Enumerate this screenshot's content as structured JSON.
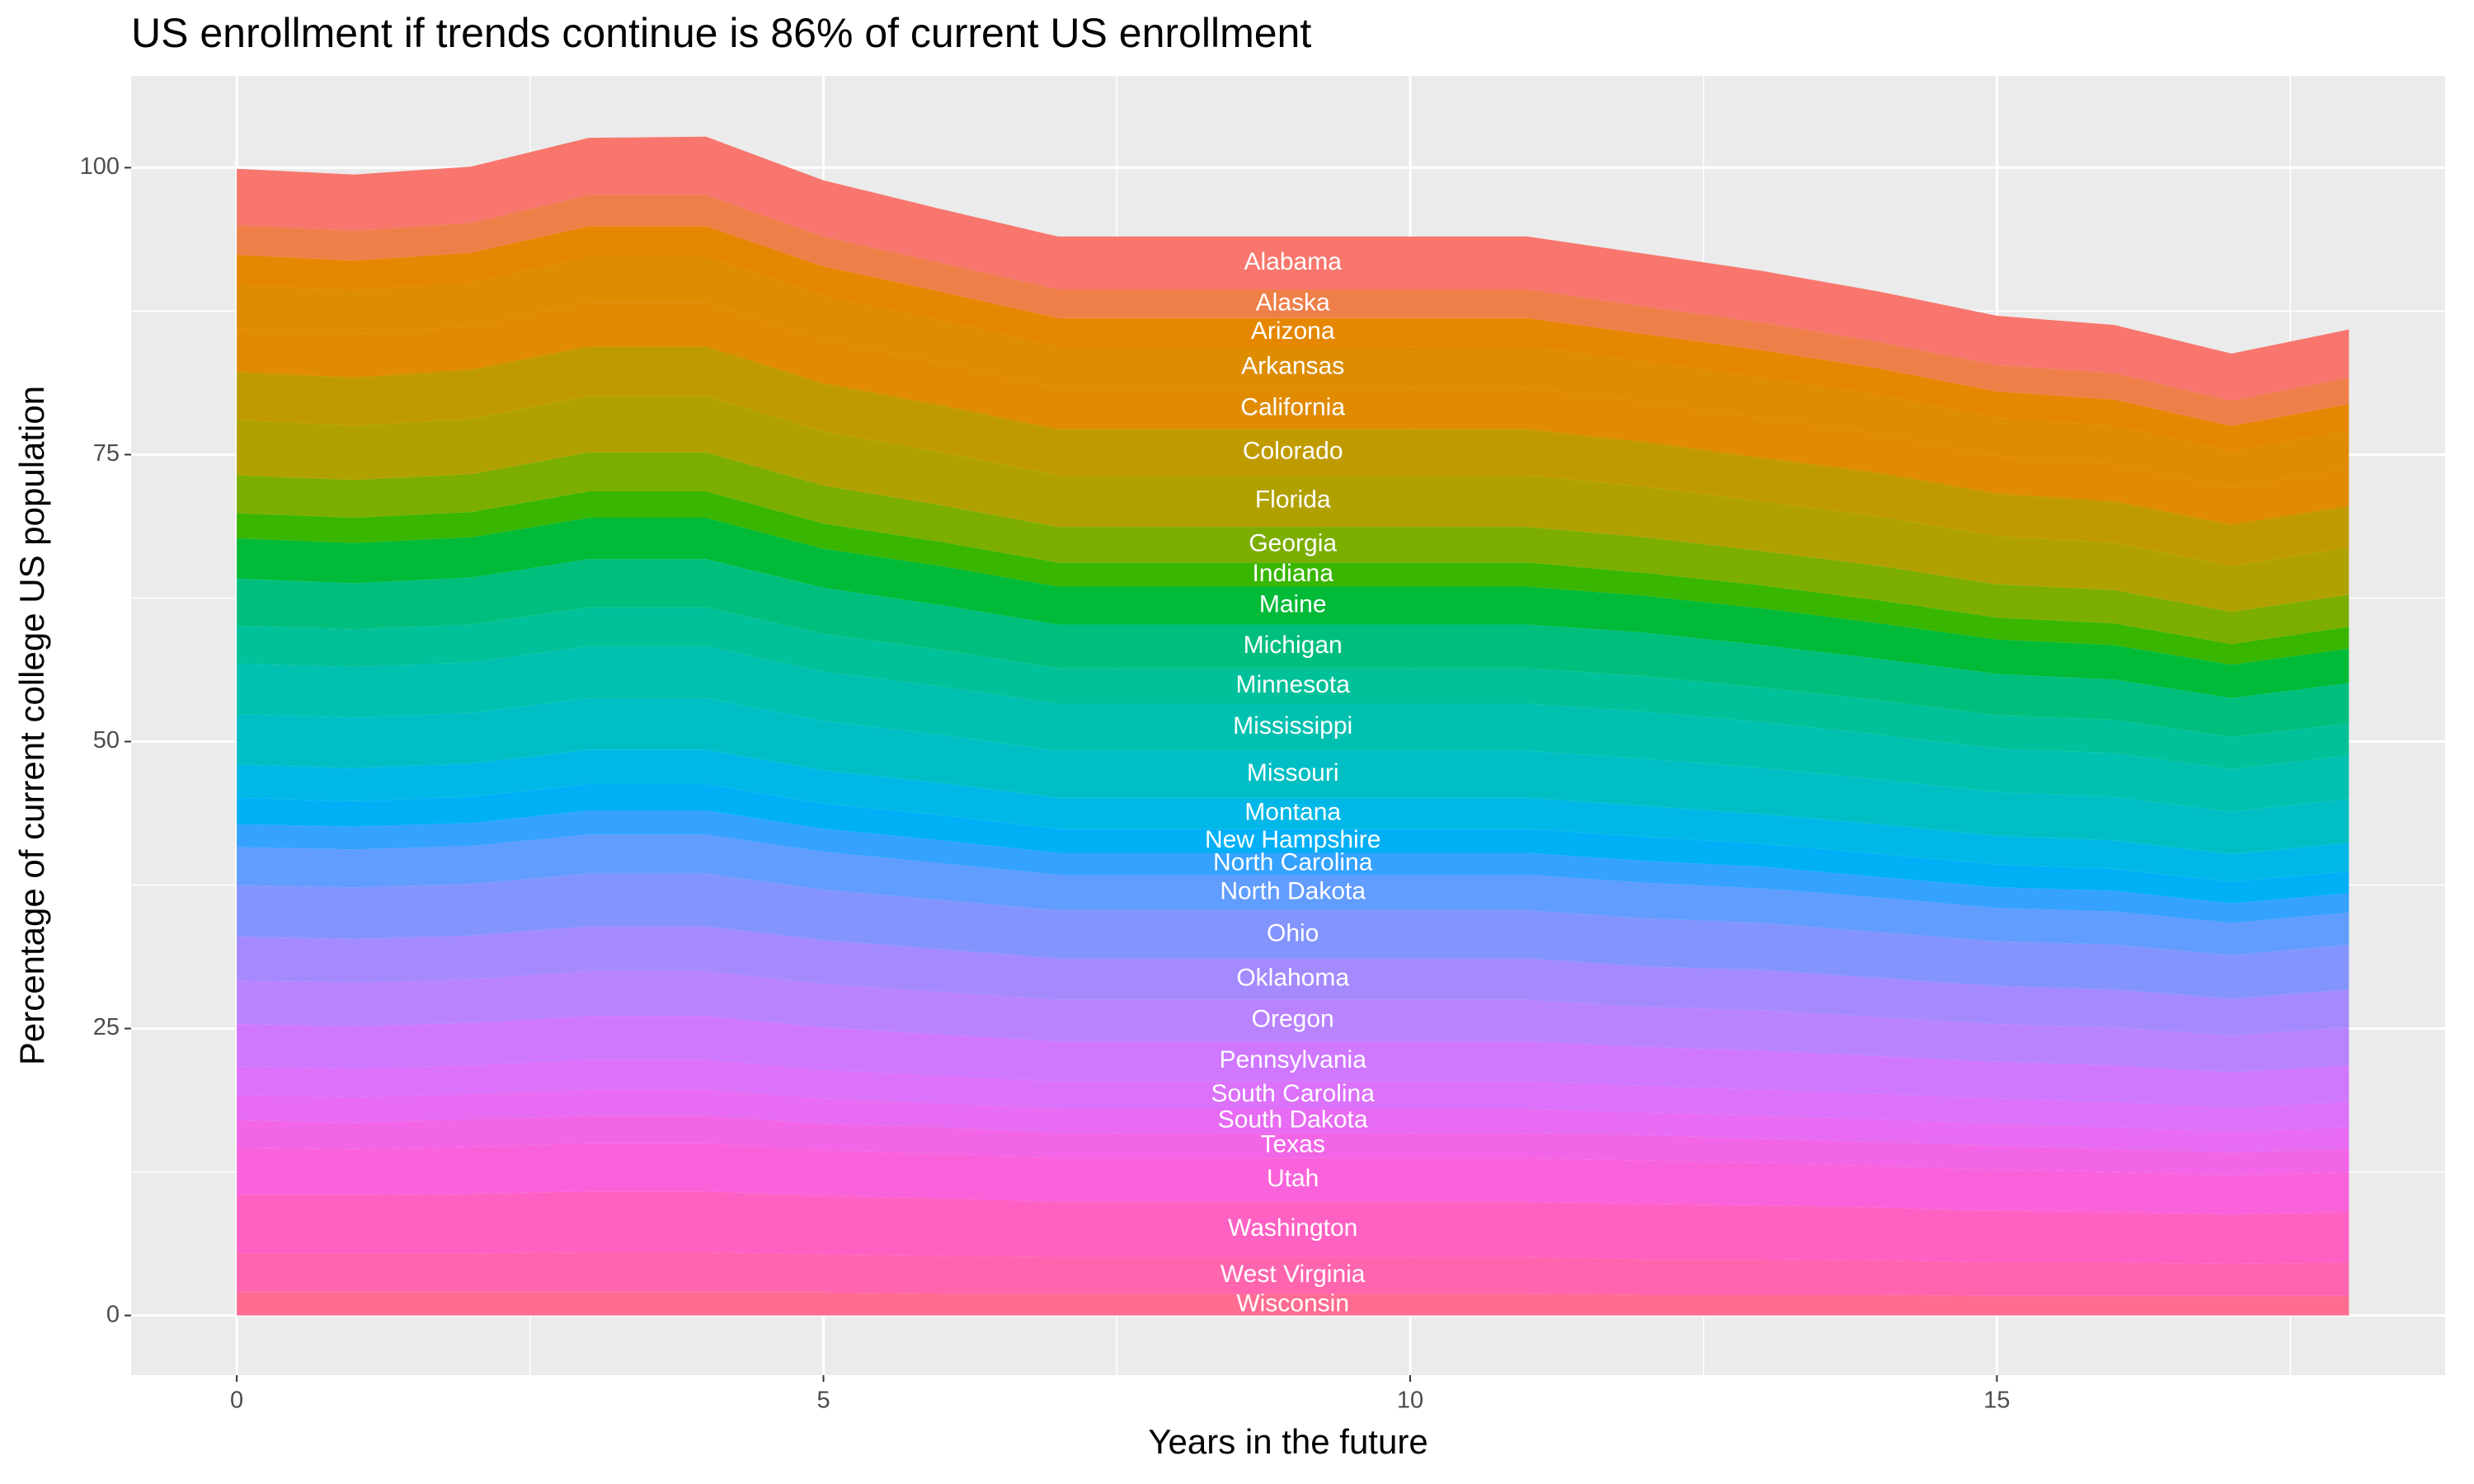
{
  "chart_data": {
    "type": "area",
    "title": "US enrollment if trends continue is 86% of current US enrollment",
    "x_label": "Years in the future",
    "y_label": "Percentage of current college US population",
    "x": [
      0,
      1,
      2,
      3,
      4,
      5,
      6,
      7,
      8,
      9,
      10,
      11,
      12,
      13,
      14,
      15,
      16,
      17,
      18
    ],
    "xlim": [
      -0.9,
      18.82
    ],
    "xticks": [
      0,
      5,
      10,
      15
    ],
    "ylim": [
      -5.2,
      108
    ],
    "yticks": [
      0,
      25,
      50,
      75,
      100
    ],
    "grid": true,
    "panel_color": "#ebebeb",
    "label_color": "#ffffff",
    "series": [
      {
        "name": "Alabama",
        "color": "#F8766D",
        "values": [
          4.9,
          4.9,
          4.9,
          5.0,
          5.1,
          4.9,
          4.7,
          4.6,
          4.6,
          4.6,
          4.6,
          4.6,
          4.6,
          4.5,
          4.4,
          4.3,
          4.2,
          4.1,
          4.2
        ]
      },
      {
        "name": "Alaska",
        "color": "#EF7F49",
        "values": [
          2.6,
          2.6,
          2.6,
          2.7,
          2.7,
          2.6,
          2.5,
          2.5,
          2.5,
          2.5,
          2.5,
          2.5,
          2.4,
          2.4,
          2.3,
          2.3,
          2.3,
          2.2,
          2.3
        ]
      },
      {
        "name": "Arizona",
        "color": "#E58700",
        "values": [
          2.6,
          2.6,
          2.6,
          2.7,
          2.7,
          2.6,
          2.5,
          2.5,
          2.5,
          2.5,
          2.5,
          2.5,
          2.4,
          2.4,
          2.3,
          2.3,
          2.3,
          2.2,
          2.3
        ]
      },
      {
        "name": "Arkansas",
        "color": "#DE8C00",
        "values": [
          3.8,
          3.8,
          3.8,
          3.9,
          3.9,
          3.8,
          3.7,
          3.6,
          3.6,
          3.6,
          3.6,
          3.6,
          3.5,
          3.5,
          3.4,
          3.3,
          3.3,
          3.2,
          3.3
        ]
      },
      {
        "name": "California",
        "color": "#E08B00",
        "values": [
          3.8,
          3.8,
          3.8,
          3.9,
          3.9,
          3.8,
          3.7,
          3.6,
          3.6,
          3.6,
          3.6,
          3.6,
          3.5,
          3.5,
          3.4,
          3.3,
          3.3,
          3.2,
          3.3
        ]
      },
      {
        "name": "Colorado",
        "color": "#C09B00",
        "values": [
          4.2,
          4.2,
          4.3,
          4.3,
          4.3,
          4.2,
          4.1,
          4.0,
          4.0,
          4.0,
          4.0,
          4.0,
          3.9,
          3.8,
          3.8,
          3.7,
          3.6,
          3.6,
          3.6
        ]
      },
      {
        "name": "Florida",
        "color": "#B0A100",
        "values": [
          4.8,
          4.7,
          4.8,
          4.9,
          4.9,
          4.7,
          4.6,
          4.5,
          4.5,
          4.5,
          4.5,
          4.5,
          4.4,
          4.3,
          4.3,
          4.2,
          4.1,
          4.0,
          4.1
        ]
      },
      {
        "name": "Georgia",
        "color": "#7CAE00",
        "values": [
          3.3,
          3.3,
          3.3,
          3.4,
          3.4,
          3.3,
          3.2,
          3.1,
          3.1,
          3.1,
          3.1,
          3.1,
          3.1,
          3.0,
          3.0,
          2.9,
          2.9,
          2.8,
          2.8
        ]
      },
      {
        "name": "Indiana",
        "color": "#39B600",
        "values": [
          2.2,
          2.2,
          2.2,
          2.3,
          2.3,
          2.2,
          2.1,
          2.1,
          2.1,
          2.1,
          2.1,
          2.1,
          2.0,
          2.0,
          2.0,
          1.9,
          1.9,
          1.8,
          1.9
        ]
      },
      {
        "name": "Maine",
        "color": "#00BA38",
        "values": [
          3.5,
          3.5,
          3.5,
          3.6,
          3.6,
          3.4,
          3.4,
          3.3,
          3.3,
          3.3,
          3.3,
          3.3,
          3.2,
          3.2,
          3.1,
          3.0,
          3.0,
          2.9,
          3.0
        ]
      },
      {
        "name": "Michigan",
        "color": "#00BF7D",
        "values": [
          4.1,
          4.0,
          4.1,
          4.2,
          4.2,
          4.0,
          3.9,
          3.8,
          3.8,
          3.8,
          3.8,
          3.8,
          3.8,
          3.7,
          3.6,
          3.6,
          3.5,
          3.4,
          3.5
        ]
      },
      {
        "name": "Minnesota",
        "color": "#00C19A",
        "values": [
          3.3,
          3.3,
          3.3,
          3.4,
          3.4,
          3.3,
          3.2,
          3.1,
          3.1,
          3.1,
          3.1,
          3.1,
          3.1,
          3.0,
          3.0,
          2.9,
          2.9,
          2.8,
          2.8
        ]
      },
      {
        "name": "Mississippi",
        "color": "#00C0B0",
        "values": [
          4.4,
          4.4,
          4.4,
          4.5,
          4.5,
          4.3,
          4.2,
          4.1,
          4.1,
          4.1,
          4.1,
          4.1,
          4.1,
          4.0,
          3.9,
          3.8,
          3.8,
          3.7,
          3.8
        ]
      },
      {
        "name": "Missouri",
        "color": "#00BFC4",
        "values": [
          4.4,
          4.4,
          4.4,
          4.5,
          4.5,
          4.3,
          4.2,
          4.1,
          4.1,
          4.1,
          4.1,
          4.1,
          4.1,
          4.0,
          3.9,
          3.8,
          3.8,
          3.7,
          3.8
        ]
      },
      {
        "name": "Montana",
        "color": "#00B8E7",
        "values": [
          2.9,
          2.9,
          2.9,
          3.0,
          3.0,
          2.9,
          2.8,
          2.7,
          2.7,
          2.7,
          2.7,
          2.7,
          2.7,
          2.6,
          2.6,
          2.5,
          2.5,
          2.4,
          2.5
        ]
      },
      {
        "name": "New Hampshire",
        "color": "#00B0F6",
        "values": [
          2.3,
          2.2,
          2.3,
          2.3,
          2.3,
          2.2,
          2.2,
          2.1,
          2.1,
          2.1,
          2.1,
          2.1,
          2.1,
          2.0,
          2.0,
          2.0,
          1.9,
          1.9,
          1.9
        ]
      },
      {
        "name": "North Carolina",
        "color": "#35A2FF",
        "values": [
          2.0,
          2.0,
          2.0,
          2.1,
          2.1,
          2.0,
          2.0,
          1.9,
          1.9,
          1.9,
          1.9,
          1.9,
          1.9,
          1.9,
          1.8,
          1.8,
          1.8,
          1.7,
          1.7
        ]
      },
      {
        "name": "North Dakota",
        "color": "#619CFF",
        "values": [
          3.3,
          3.3,
          3.3,
          3.4,
          3.4,
          3.3,
          3.2,
          3.1,
          3.1,
          3.1,
          3.1,
          3.1,
          3.1,
          3.0,
          3.0,
          2.9,
          2.9,
          2.8,
          2.8
        ]
      },
      {
        "name": "Ohio",
        "color": "#8494FF",
        "values": [
          4.5,
          4.5,
          4.5,
          4.6,
          4.6,
          4.4,
          4.3,
          4.2,
          4.2,
          4.2,
          4.2,
          4.2,
          4.2,
          4.1,
          4.0,
          3.9,
          3.9,
          3.8,
          3.9
        ]
      },
      {
        "name": "Oklahoma",
        "color": "#A58AFF",
        "values": [
          3.8,
          3.8,
          3.8,
          3.9,
          3.9,
          3.8,
          3.7,
          3.6,
          3.6,
          3.6,
          3.6,
          3.6,
          3.5,
          3.5,
          3.4,
          3.3,
          3.3,
          3.2,
          3.3
        ]
      },
      {
        "name": "Oregon",
        "color": "#B983FF",
        "values": [
          3.8,
          3.8,
          3.8,
          3.9,
          3.9,
          3.8,
          3.7,
          3.6,
          3.6,
          3.6,
          3.6,
          3.6,
          3.5,
          3.5,
          3.4,
          3.3,
          3.3,
          3.2,
          3.3
        ]
      },
      {
        "name": "Pennsylvania",
        "color": "#CF78FF",
        "values": [
          3.7,
          3.7,
          3.7,
          3.8,
          3.8,
          3.7,
          3.6,
          3.5,
          3.5,
          3.5,
          3.5,
          3.5,
          3.4,
          3.4,
          3.3,
          3.2,
          3.2,
          3.1,
          3.2
        ]
      },
      {
        "name": "South Carolina",
        "color": "#DC71FA",
        "values": [
          2.5,
          2.5,
          2.5,
          2.6,
          2.6,
          2.5,
          2.4,
          2.4,
          2.4,
          2.4,
          2.4,
          2.4,
          2.3,
          2.3,
          2.2,
          2.2,
          2.2,
          2.1,
          2.2
        ]
      },
      {
        "name": "South Dakota",
        "color": "#E76BF3",
        "values": [
          2.2,
          2.2,
          2.2,
          2.3,
          2.3,
          2.2,
          2.1,
          2.1,
          2.1,
          2.1,
          2.1,
          2.1,
          2.0,
          2.0,
          2.0,
          1.9,
          1.9,
          1.8,
          1.9
        ]
      },
      {
        "name": "Texas",
        "color": "#F265E7",
        "values": [
          2.4,
          2.3,
          2.4,
          2.4,
          2.4,
          2.3,
          2.3,
          2.2,
          2.2,
          2.2,
          2.2,
          2.2,
          2.2,
          2.1,
          2.1,
          2.1,
          2.0,
          2.0,
          2.0
        ]
      },
      {
        "name": "Utah",
        "color": "#FA62DB",
        "values": [
          4.1,
          4.0,
          4.1,
          4.2,
          4.2,
          4.0,
          3.9,
          3.8,
          3.8,
          3.8,
          3.8,
          3.8,
          3.8,
          3.7,
          3.6,
          3.6,
          3.5,
          3.4,
          3.5
        ]
      },
      {
        "name": "Washington",
        "color": "#FF61C3",
        "values": [
          5.1,
          5.1,
          5.2,
          5.3,
          5.3,
          5.1,
          5.0,
          4.8,
          4.8,
          4.8,
          4.8,
          4.8,
          4.8,
          4.7,
          4.6,
          4.5,
          4.4,
          4.3,
          4.4
        ]
      },
      {
        "name": "West Virginia",
        "color": "#FF65AE",
        "values": [
          3.4,
          3.4,
          3.4,
          3.5,
          3.5,
          3.3,
          3.3,
          3.2,
          3.2,
          3.2,
          3.2,
          3.2,
          3.1,
          3.1,
          3.0,
          2.9,
          2.9,
          2.8,
          2.9
        ]
      },
      {
        "name": "Wisconsin",
        "color": "#FF6C91",
        "values": [
          2.0,
          2.0,
          2.0,
          2.0,
          2.0,
          2.0,
          1.9,
          1.9,
          1.9,
          1.9,
          1.9,
          1.9,
          1.8,
          1.8,
          1.8,
          1.7,
          1.7,
          1.7,
          1.7
        ]
      }
    ]
  }
}
